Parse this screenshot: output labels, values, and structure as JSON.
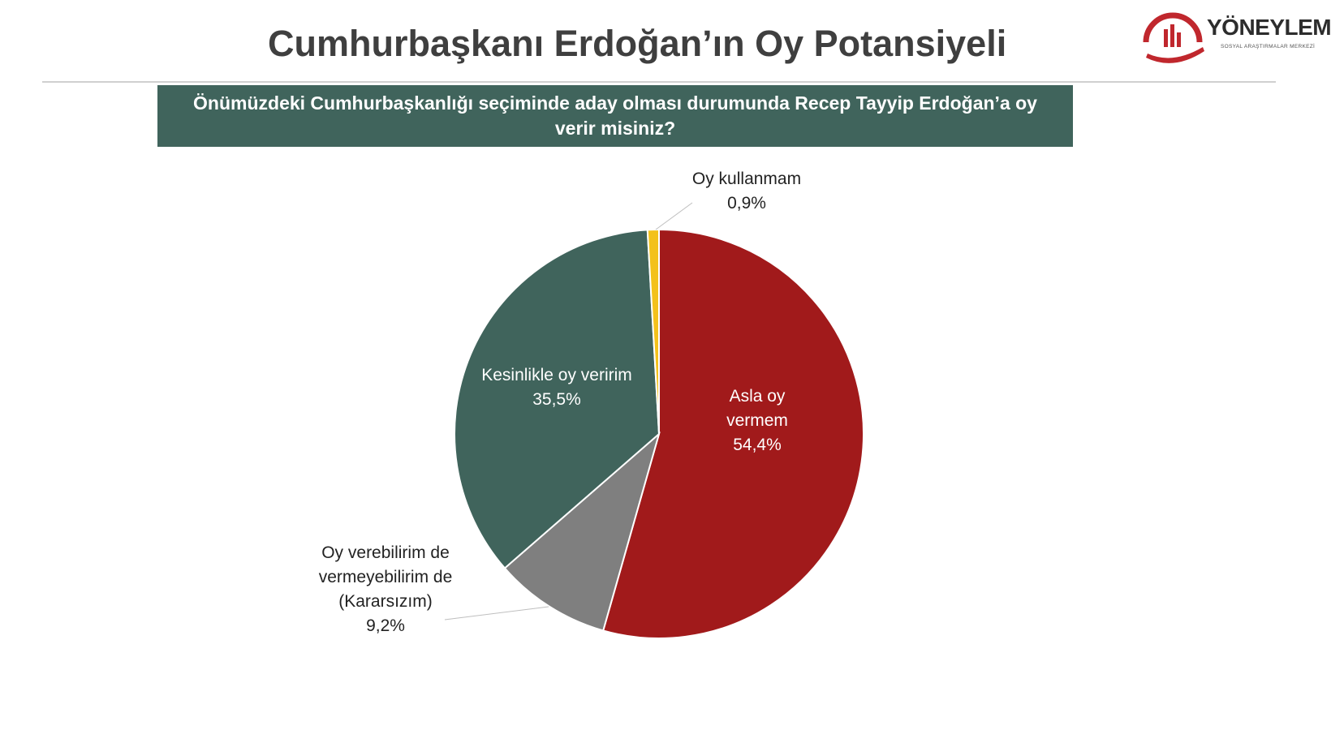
{
  "title": "Cumhurbaşkanı Erdoğan’ın Oy Potansiyeli",
  "logo": {
    "name": "YÖNEYLEM",
    "subtitle": "SOSYAL ARAŞTIRMALAR MERKEZİ",
    "color": "#c0272d"
  },
  "question": "Önümüzdeki Cumhurbaşkanlığı seçiminde aday olması durumunda Recep Tayyip Erdoğan’a oy verir misiniz?",
  "chart_data": {
    "type": "pie",
    "title": "",
    "slices": [
      {
        "label": "Asla oy vermem",
        "value": 54.4,
        "display": "54,4%",
        "color": "#a11a1b",
        "lines": [
          "Asla oy",
          "vermem",
          "54,4%"
        ]
      },
      {
        "label": "Oy verebilirim de vermeyebilirim de (Kararsızım)",
        "value": 9.2,
        "display": "9,2%",
        "color": "#7f7f7f",
        "lines": [
          "Oy verebilirim de",
          "vermeyebilirim de",
          "(Kararsızım)",
          "9,2%"
        ]
      },
      {
        "label": "Kesinlikle oy veririm",
        "value": 35.5,
        "display": "35,5%",
        "color": "#40645c",
        "lines": [
          "Kesinlikle oy veririm",
          "35,5%"
        ]
      },
      {
        "label": "Oy kullanmam",
        "value": 0.9,
        "display": "0,9%",
        "color": "#f3c11b",
        "lines": [
          "Oy kullanmam",
          "0,9%"
        ]
      }
    ]
  }
}
